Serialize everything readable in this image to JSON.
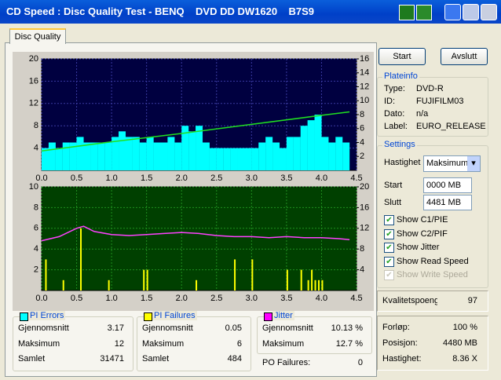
{
  "window": {
    "title": "CD Speed : Disc Quality Test - BENQ    DVD DD DW1620    B7S9",
    "tab": "Disc Quality"
  },
  "buttons": {
    "start": "Start",
    "exit": "Avslutt"
  },
  "plateinfo": {
    "title": "Plateinfo",
    "rows": [
      {
        "label": "Type:",
        "value": "DVD-R"
      },
      {
        "label": "ID:",
        "value": "FUJIFILM03"
      },
      {
        "label": "Dato:",
        "value": "n/a"
      },
      {
        "label": "Label:",
        "value": "EURO_RELEASE"
      }
    ]
  },
  "settings": {
    "title": "Settings",
    "speed_label": "Hastighet",
    "speed_value": "Maksimum",
    "start_label": "Start",
    "start_value": "0000 MB",
    "end_label": "Slutt",
    "end_value": "4481 MB",
    "checks": [
      {
        "label": "Show C1/PIE",
        "checked": true,
        "enabled": true
      },
      {
        "label": "Show C2/PIF",
        "checked": true,
        "enabled": true
      },
      {
        "label": "Show Jitter",
        "checked": true,
        "enabled": true
      },
      {
        "label": "Show Read Speed",
        "checked": true,
        "enabled": true
      },
      {
        "label": "Show Write Speed",
        "checked": true,
        "enabled": false
      }
    ]
  },
  "quality": {
    "label": "Kvalitetspoeng",
    "value": 97
  },
  "progress": {
    "rows": [
      {
        "label": "Forløp:",
        "value": "100 %"
      },
      {
        "label": "Posisjon:",
        "value": "4480 MB"
      },
      {
        "label": "Hastighet:",
        "value": "8.36 X"
      }
    ]
  },
  "stats": {
    "pi_errors": {
      "title": "PI Errors",
      "color": "#00ffff",
      "rows": [
        {
          "label": "Gjennomsnitt",
          "value": 3.17
        },
        {
          "label": "Maksimum",
          "value": 12
        },
        {
          "label": "Samlet",
          "value": 31471
        }
      ]
    },
    "pi_failures": {
      "title": "PI Failures",
      "color": "#ffff00",
      "rows": [
        {
          "label": "Gjennomsnitt",
          "value": 0.05
        },
        {
          "label": "Maksimum",
          "value": 6
        },
        {
          "label": "Samlet",
          "value": 484
        }
      ]
    },
    "jitter": {
      "title": "Jitter",
      "color": "#ff00ff",
      "rows": [
        {
          "label": "Gjennomsnitt",
          "value": "10.13 %"
        },
        {
          "label": "Maksimum",
          "value": "12.7 %"
        }
      ]
    },
    "po_failures": {
      "label": "PO Failures:",
      "value": 0
    }
  },
  "chart_data": [
    {
      "type": "bar",
      "background": "#000040",
      "grid": true,
      "grid_color": "#3a3aa0",
      "xlim": [
        0,
        4.5
      ],
      "ylim": [
        0,
        20
      ],
      "y2lim": [
        0,
        16
      ],
      "xticks": [
        {
          "value": 0,
          "label": "0.0"
        },
        0.5,
        {
          "value": 1,
          "label": "1.0"
        },
        1.5,
        {
          "value": 2,
          "label": "2.0"
        },
        2.5,
        {
          "value": 3,
          "label": "3.0"
        },
        3.5,
        {
          "value": 4,
          "label": "4.0"
        },
        4.5
      ],
      "yticks": [
        4,
        8,
        12,
        16,
        20
      ],
      "y2ticks": [
        2,
        4,
        6,
        8,
        10,
        12,
        14,
        16
      ],
      "series": [
        {
          "type": "bar",
          "color": "#00ffff",
          "x": [
            0,
            0.1,
            0.2,
            0.3,
            0.4,
            0.5,
            0.6,
            0.7,
            0.8,
            0.9,
            1,
            1.1,
            1.2,
            1.3,
            1.4,
            1.5,
            1.6,
            1.7,
            1.8,
            1.9,
            2,
            2.1,
            2.2,
            2.3,
            2.4,
            2.5,
            2.6,
            2.7,
            2.8,
            2.9,
            3,
            3.1,
            3.2,
            3.3,
            3.4,
            3.5,
            3.6,
            3.7,
            3.8,
            3.9,
            4,
            4.1,
            4.2,
            4.3
          ],
          "values": [
            4,
            5,
            4,
            5,
            5,
            6,
            5,
            5,
            5,
            5,
            6,
            7,
            6,
            6,
            5,
            6,
            5,
            5,
            6,
            5,
            8,
            7,
            8,
            5,
            4,
            4,
            4,
            4,
            4,
            4,
            4,
            5,
            6,
            5,
            4,
            6,
            6,
            8,
            9,
            10,
            6,
            5,
            6,
            5
          ]
        },
        {
          "type": "line",
          "axis": "y2",
          "color": "#20e020",
          "x": [
            0,
            1,
            2,
            3,
            4,
            4.4
          ],
          "values": [
            2.8,
            4.1,
            5.3,
            6.6,
            7.9,
            8.4
          ]
        }
      ]
    },
    {
      "type": "bar",
      "background": "#004000",
      "grid": true,
      "grid_color": "#1f8f1f",
      "xlim": [
        0,
        4.5
      ],
      "ylim": [
        0,
        10
      ],
      "y2lim": [
        0,
        20
      ],
      "xticks": [
        {
          "value": 0,
          "label": "0.0"
        },
        0.5,
        {
          "value": 1,
          "label": "1.0"
        },
        1.5,
        {
          "value": 2,
          "label": "2.0"
        },
        2.5,
        {
          "value": 3,
          "label": "3.0"
        },
        3.5,
        {
          "value": 4,
          "label": "4.0"
        },
        4.5
      ],
      "yticks": [
        2,
        4,
        6,
        8,
        10
      ],
      "y2ticks": [
        4,
        8,
        12,
        16,
        20
      ],
      "series": [
        {
          "type": "bar",
          "color": "#ffff00",
          "x": [
            0.05,
            0.3,
            0.55,
            0.95,
            1.45,
            1.5,
            2.2,
            2.75,
            3,
            3.5,
            3.7,
            3.8,
            3.85,
            3.9,
            3.95,
            4
          ],
          "values": [
            3,
            1,
            6,
            1,
            2,
            2,
            1,
            3,
            3,
            2,
            2,
            1,
            2,
            1,
            1,
            1
          ]
        },
        {
          "type": "line",
          "axis": "y2",
          "color": "#ff40ff",
          "x": [
            0,
            0.25,
            0.5,
            0.6,
            0.75,
            1,
            1.25,
            1.5,
            1.75,
            2,
            2.25,
            2.5,
            2.75,
            3,
            3.25,
            3.5,
            3.75,
            4,
            4.25,
            4.4
          ],
          "values": [
            9.6,
            10.4,
            12,
            12.4,
            11.4,
            10.8,
            10.6,
            10.8,
            11,
            11.2,
            11,
            10.6,
            10.4,
            10.4,
            10.2,
            10.4,
            10.2,
            10.2,
            10,
            9.8
          ]
        }
      ]
    }
  ]
}
